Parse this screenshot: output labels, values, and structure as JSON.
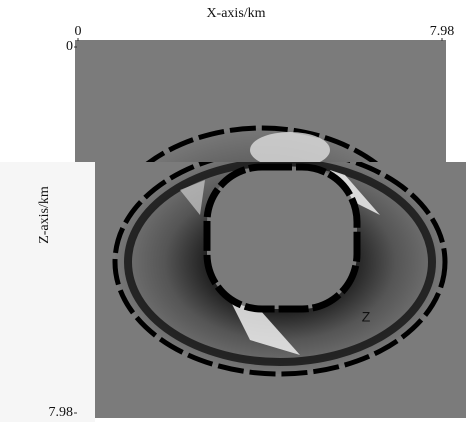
{
  "chart_data": {
    "type": "image",
    "xlabel": "X-axis/km",
    "ylabel": "Z-axis/km",
    "xlim": [
      0,
      7.98
    ],
    "ylim": [
      0,
      7.98
    ],
    "xticks": [
      0,
      7.98
    ],
    "yticks": [
      0,
      7.98
    ],
    "annotation": "Z"
  }
}
